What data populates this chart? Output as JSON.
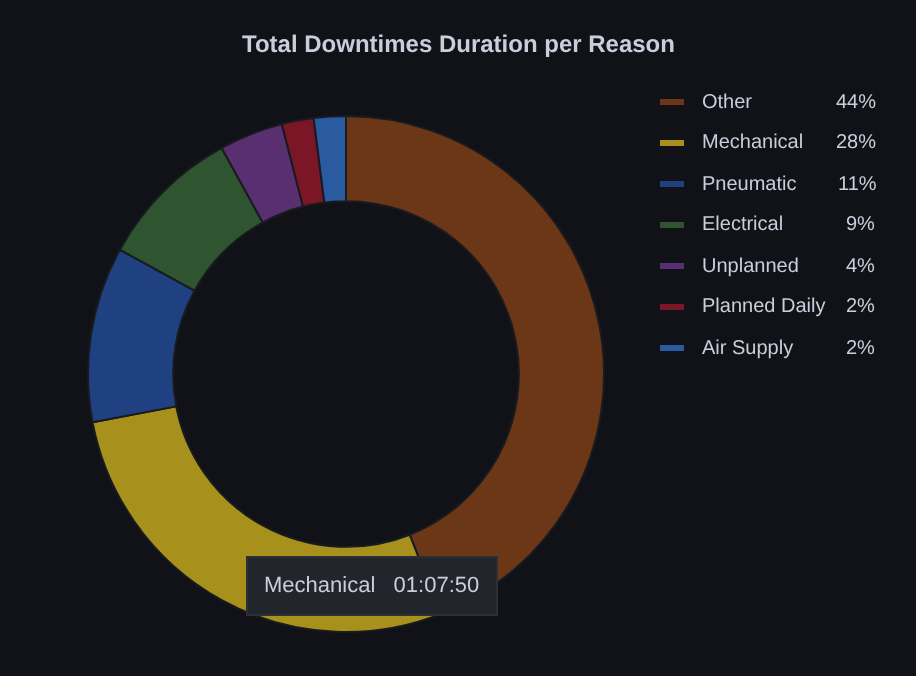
{
  "chart_data": {
    "type": "donut",
    "title": "Total Downtimes Duration per Reason",
    "categories": [
      "Other",
      "Mechanical",
      "Pneumatic",
      "Electrical",
      "Unplanned",
      "Planned Daily",
      "Air Supply"
    ],
    "values": [
      44,
      28,
      11,
      9,
      4,
      2,
      2
    ],
    "value_labels": [
      "44%",
      "28%",
      "11%",
      "9%",
      "4%",
      "2%",
      "2%"
    ],
    "colors": [
      "#6b3716",
      "#a8901c",
      "#1f4182",
      "#2f5530",
      "#5a2f72",
      "#7a1626",
      "#2a5aa0"
    ],
    "legend": "right",
    "annotations": [
      "Mechanical   01:07:50"
    ]
  }
}
